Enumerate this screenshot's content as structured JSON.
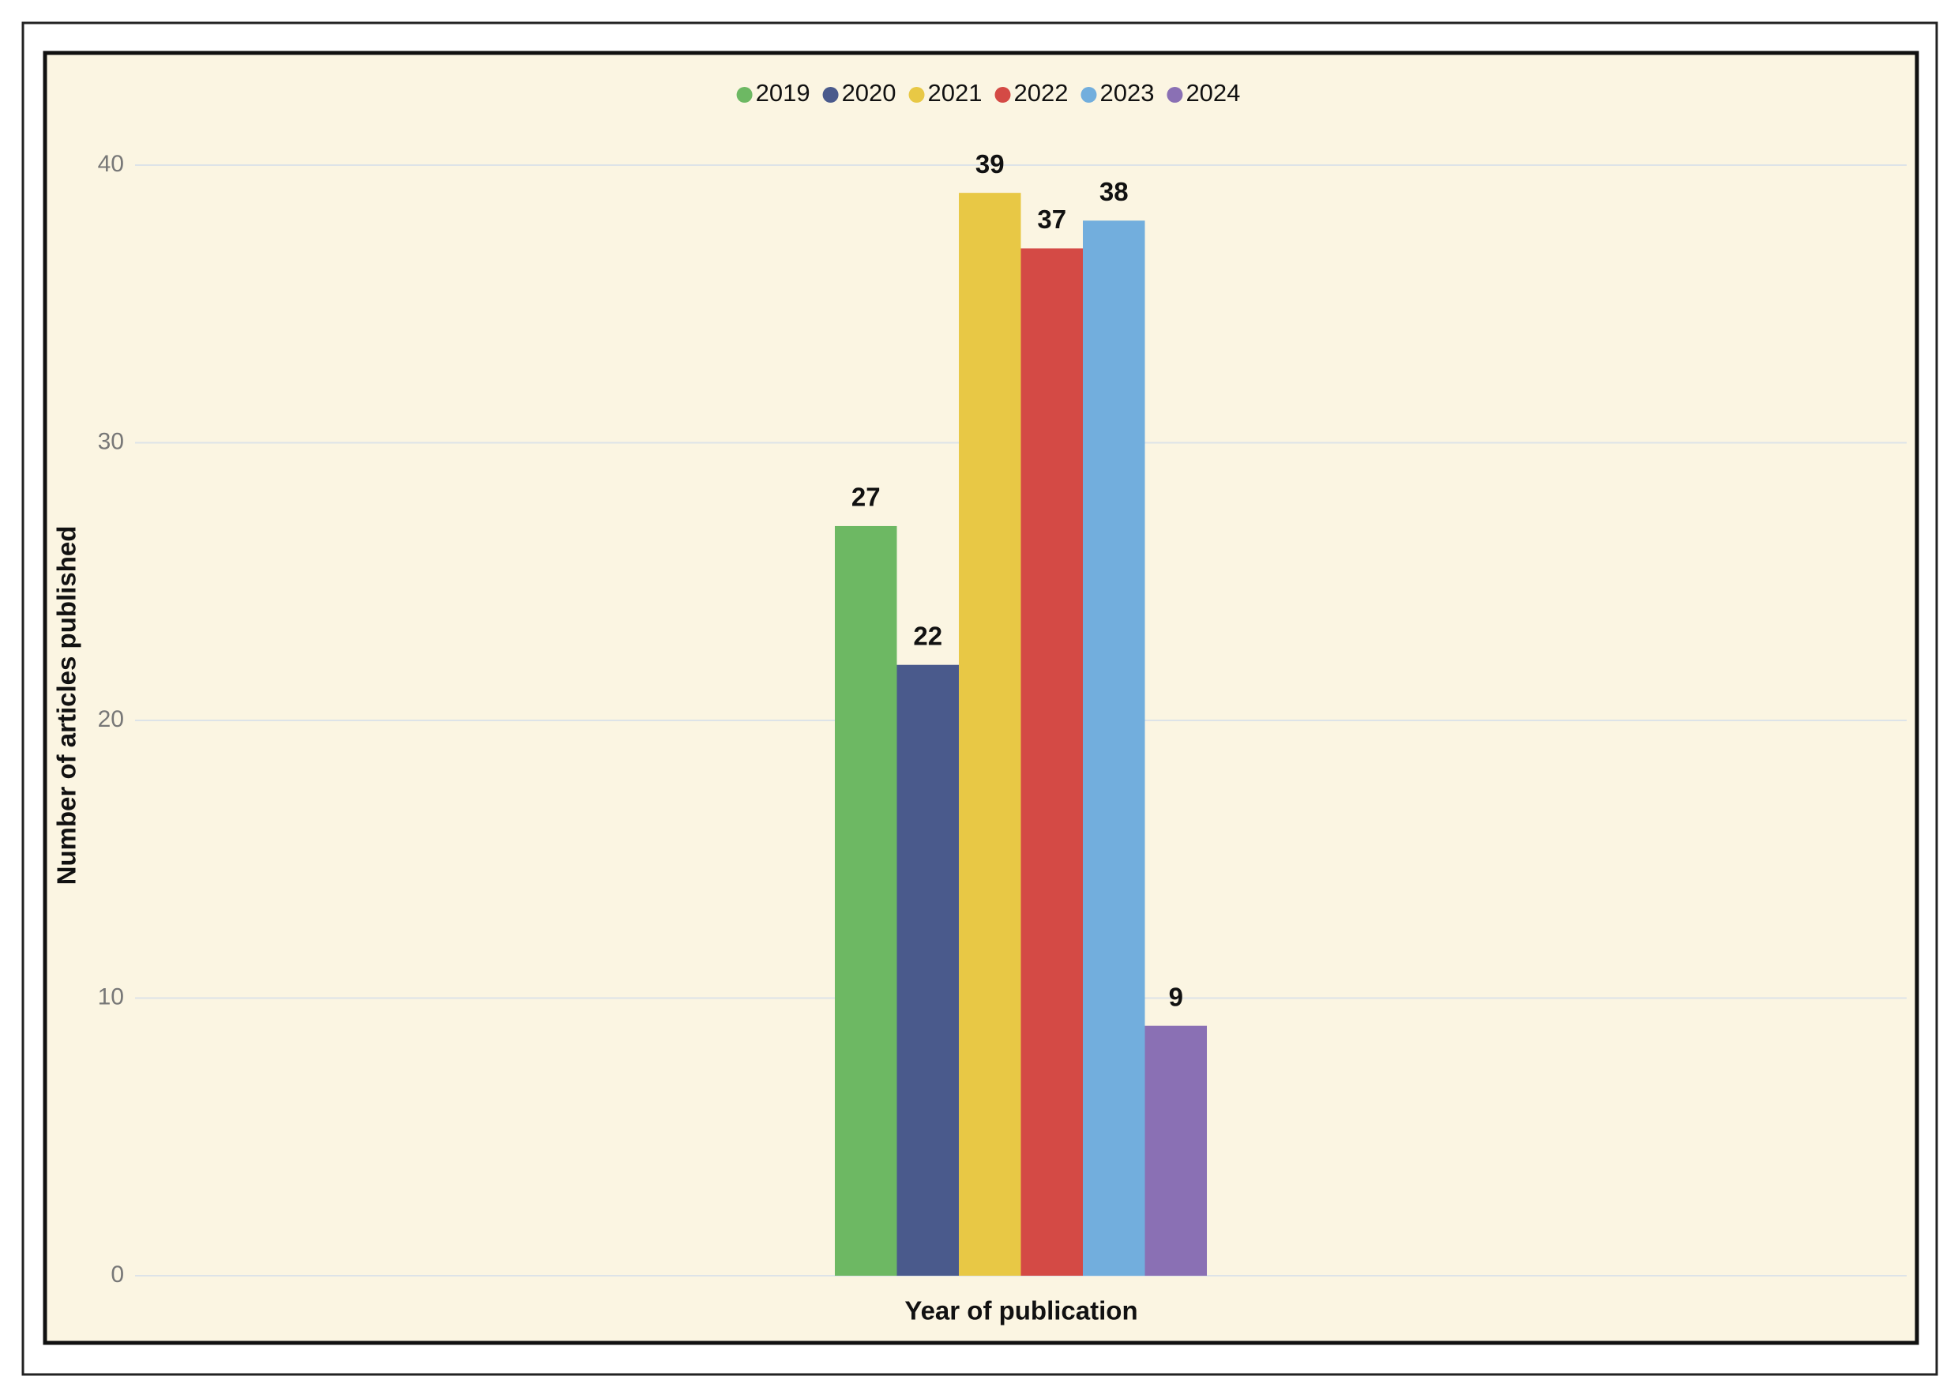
{
  "chart_data": {
    "type": "bar",
    "categories": [
      null
    ],
    "series": [
      {
        "name": "2019",
        "color": "#6db863",
        "values": [
          27
        ]
      },
      {
        "name": "2020",
        "color": "#4a5a8c",
        "values": [
          22
        ]
      },
      {
        "name": "2021",
        "color": "#e8c845",
        "values": [
          39
        ]
      },
      {
        "name": "2022",
        "color": "#d44a45",
        "values": [
          37
        ]
      },
      {
        "name": "2023",
        "color": "#72aedd",
        "values": [
          38
        ]
      },
      {
        "name": "2024",
        "color": "#8a70b4",
        "values": [
          9
        ]
      }
    ],
    "x_label": "Year of publication",
    "y_label": "Number of articles published",
    "ylim": [
      0,
      40
    ],
    "yticks": [
      0,
      10,
      20,
      30,
      40
    ],
    "grid": true,
    "legend": "top"
  }
}
